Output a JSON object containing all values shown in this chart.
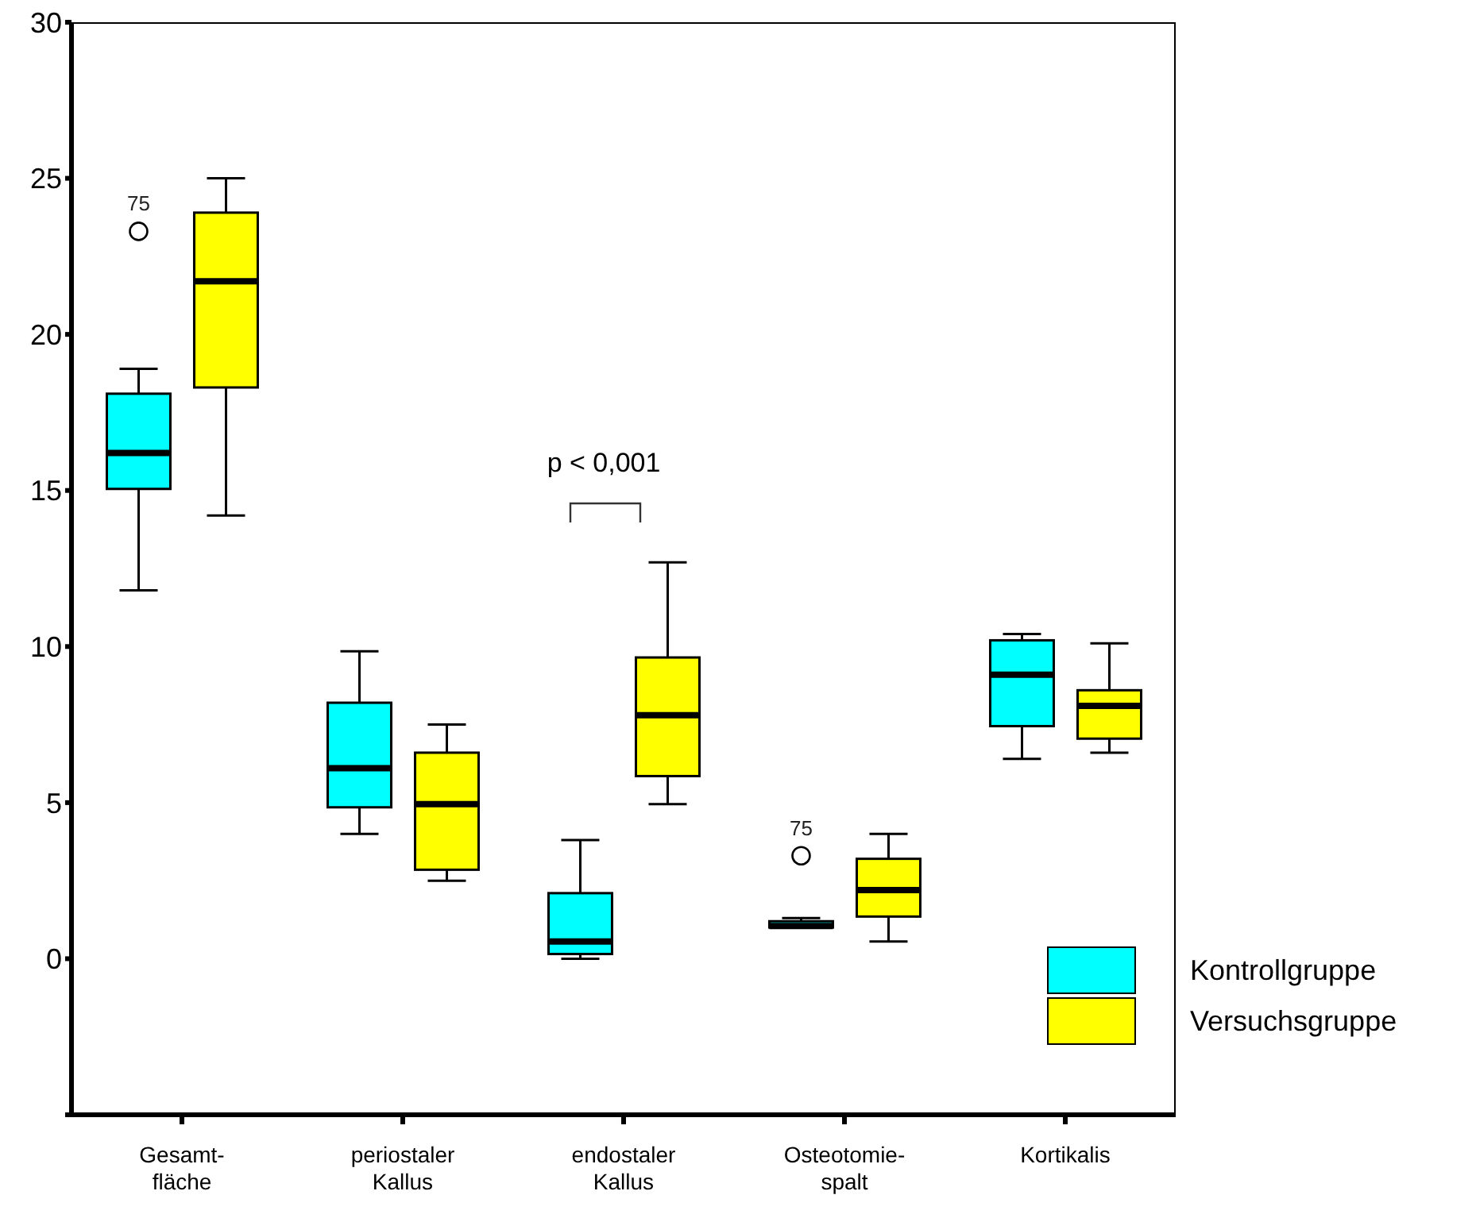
{
  "chart_data": {
    "type": "box",
    "categories": [
      "Gesamt-\nfläche",
      "periostaler\nKallus",
      "endostaler\nKallus",
      "Osteotomie-\nspalt",
      "Kortikalis"
    ],
    "ylim": [
      -5,
      30
    ],
    "yticks": [
      {
        "value": -5,
        "label": null
      },
      0,
      5,
      10,
      15,
      20,
      25,
      30
    ],
    "legend": "right",
    "series": [
      {
        "name": "Kontrollgruppe",
        "color": "#00ffff",
        "boxes": [
          {
            "low": 11.8,
            "q1": 15.05,
            "median": 16.2,
            "q3": 18.1,
            "high": 18.9,
            "outliers": [
              23.3
            ]
          },
          {
            "low": 4.0,
            "q1": 4.85,
            "median": 6.1,
            "q3": 8.2,
            "high": 9.85
          },
          {
            "low": 0.0,
            "q1": 0.15,
            "median": 0.55,
            "q3": 2.1,
            "high": 3.8
          },
          {
            "low": 1.0,
            "q1": 1.0,
            "median": 1.05,
            "q3": 1.2,
            "high": 1.3,
            "outliers": [
              3.3
            ]
          },
          {
            "low": 6.4,
            "q1": 7.45,
            "median": 9.1,
            "q3": 10.2,
            "high": 10.4
          }
        ]
      },
      {
        "name": "Versuchsgruppe",
        "color": "#ffff00",
        "boxes": [
          {
            "low": 14.2,
            "q1": 18.3,
            "median": 21.7,
            "q3": 23.9,
            "high": 25.0
          },
          {
            "low": 2.5,
            "q1": 2.85,
            "median": 4.95,
            "q3": 6.6,
            "high": 7.5
          },
          {
            "low": 4.95,
            "q1": 5.85,
            "median": 7.8,
            "q3": 9.65,
            "high": 12.7
          },
          {
            "low": 0.55,
            "q1": 1.35,
            "median": 2.2,
            "q3": 3.2,
            "high": 4.0
          },
          {
            "low": 6.6,
            "q1": 7.05,
            "median": 8.1,
            "q3": 8.6,
            "high": 10.1
          }
        ]
      }
    ],
    "annotations": [
      "75",
      "75",
      "p < 0,001"
    ]
  }
}
